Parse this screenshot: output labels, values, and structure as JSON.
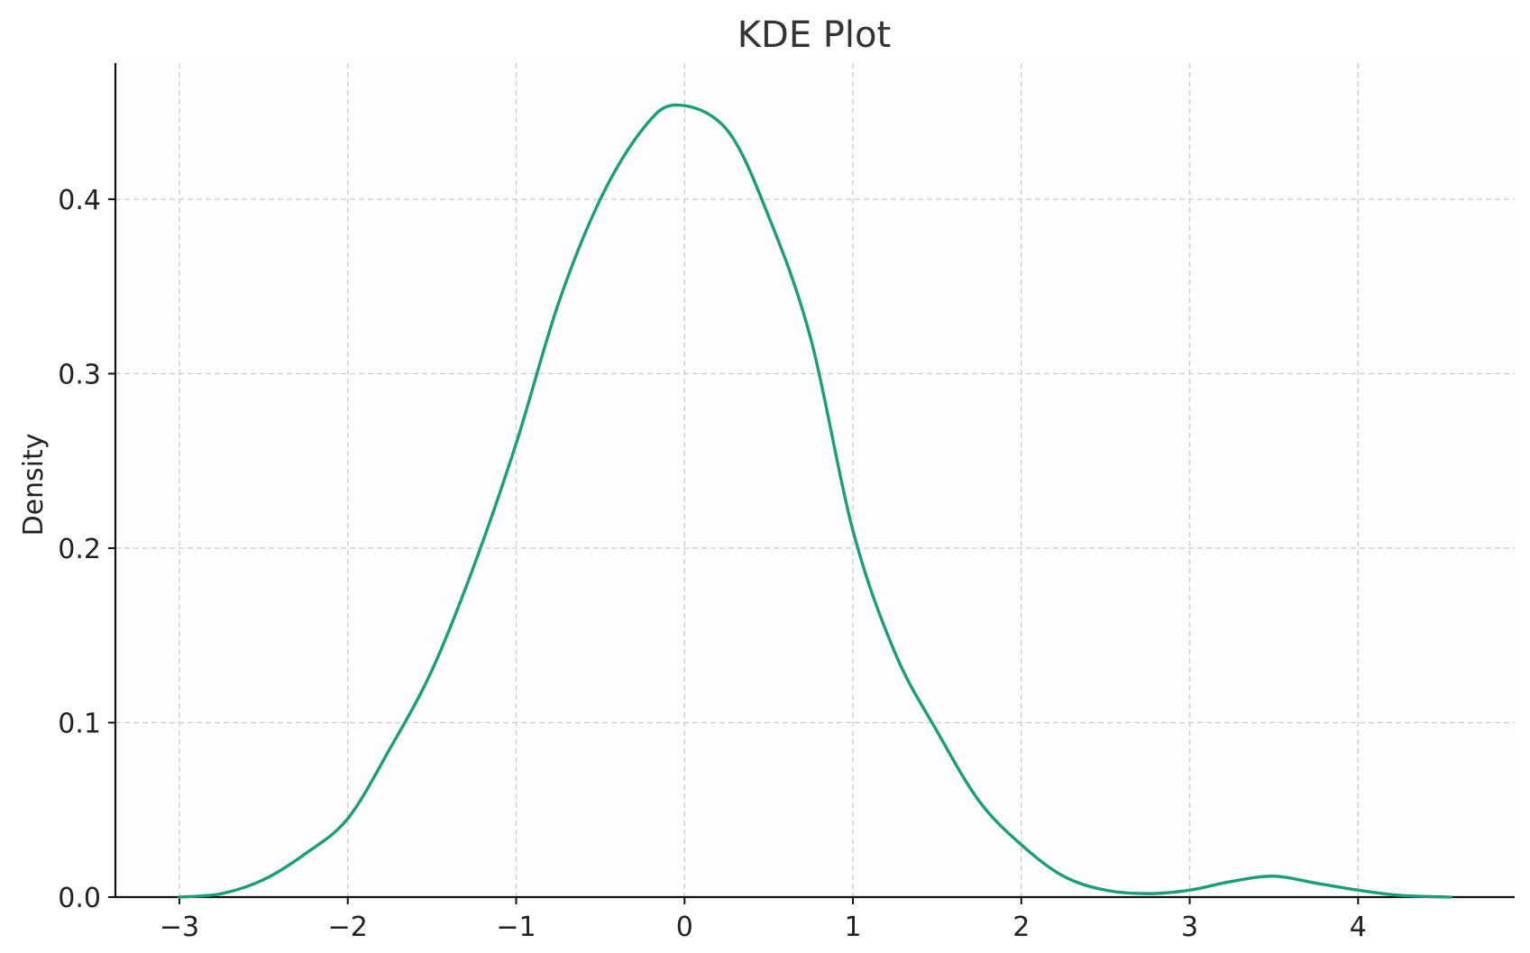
{
  "chart_data": {
    "type": "line",
    "title": "KDE Plot",
    "xlabel": "",
    "ylabel": "Density",
    "xlim": [
      -3.38,
      4.93
    ],
    "ylim": [
      0.0,
      0.478
    ],
    "xticks": [
      -3,
      -2,
      -1,
      0,
      1,
      2,
      3,
      4
    ],
    "xtick_labels": [
      "−3",
      "−2",
      "−1",
      "0",
      "1",
      "2",
      "3",
      "4"
    ],
    "yticks": [
      0.0,
      0.1,
      0.2,
      0.3,
      0.4
    ],
    "ytick_labels": [
      "0.0",
      "0.1",
      "0.2",
      "0.3",
      "0.4"
    ],
    "grid": true,
    "line_color": "#1a9e7a",
    "background": "#fdfdff",
    "series": [
      {
        "x": [
          -3.0,
          -2.75,
          -2.5,
          -2.25,
          -2.0,
          -1.75,
          -1.5,
          -1.25,
          -1.0,
          -0.75,
          -0.5,
          -0.25,
          -0.05,
          0.25,
          0.5,
          0.75,
          1.0,
          1.25,
          1.5,
          1.75,
          2.0,
          2.25,
          2.5,
          2.75,
          3.0,
          3.25,
          3.5,
          3.75,
          4.0,
          4.25,
          4.55
        ],
        "y": [
          0.0,
          0.002,
          0.01,
          0.025,
          0.045,
          0.085,
          0.13,
          0.19,
          0.26,
          0.34,
          0.4,
          0.44,
          0.454,
          0.44,
          0.39,
          0.32,
          0.21,
          0.14,
          0.095,
          0.055,
          0.03,
          0.012,
          0.004,
          0.002,
          0.004,
          0.009,
          0.012,
          0.008,
          0.004,
          0.001,
          0.0
        ]
      }
    ]
  }
}
